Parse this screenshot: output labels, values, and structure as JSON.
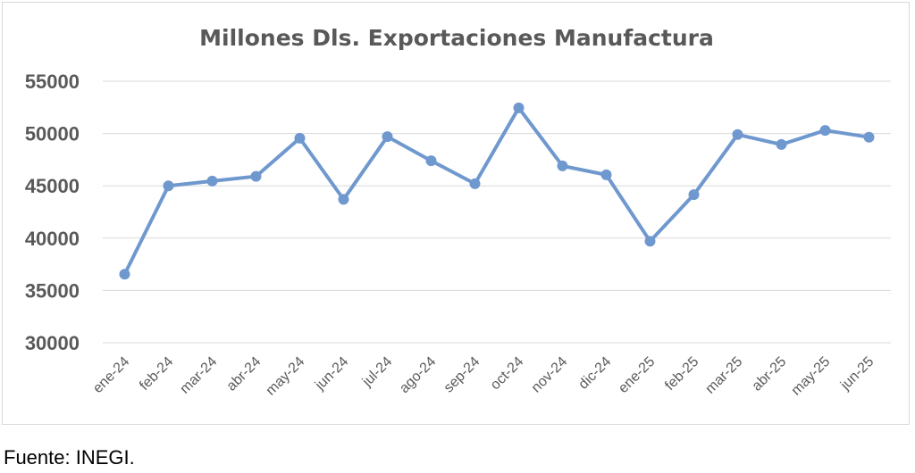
{
  "chart_data": {
    "type": "line",
    "title": "Millones Dls. Exportaciones Manufactura",
    "xlabel": "",
    "ylabel": "",
    "categories": [
      "ene-24",
      "feb-24",
      "mar-24",
      "abr-24",
      "may-24",
      "jun-24",
      "jul-24",
      "ago-24",
      "sep-24",
      "oct-24",
      "nov-24",
      "dic-24",
      "ene-25",
      "feb-25",
      "mar-25",
      "abr-25",
      "may-25",
      "jun-25"
    ],
    "series": [
      {
        "values": [
          36550,
          45000,
          45450,
          45900,
          49550,
          43700,
          49700,
          47400,
          45200,
          52450,
          46900,
          46050,
          39700,
          44150,
          49900,
          48950,
          50300,
          49650
        ]
      }
    ],
    "ylim": [
      30000,
      55000
    ],
    "yticks": [
      30000,
      35000,
      40000,
      45000,
      50000,
      55000
    ],
    "grid": true,
    "legend": "none",
    "colors": {
      "line": "#6f98cf",
      "grid": "#d9d9d9",
      "text": "#595959"
    }
  },
  "footer": {
    "source": "Fuente: INEGI."
  }
}
